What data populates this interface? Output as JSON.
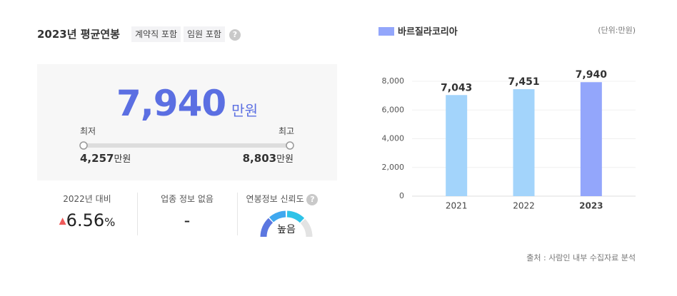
{
  "summary": {
    "title": "2023년 평균연봉",
    "tags": [
      "계약직 포함",
      "임원 포함"
    ],
    "help": "?",
    "average": {
      "value": "7,940",
      "unit": "만원"
    },
    "min": {
      "label": "최저",
      "value": "4,257",
      "unit": "만원"
    },
    "max": {
      "label": "최고",
      "value": "8,803",
      "unit": "만원"
    },
    "stats": [
      {
        "label": "2022년 대비",
        "value": "6.56",
        "unit": "%"
      },
      {
        "label": "업종 정보 없음",
        "value": "-"
      },
      {
        "label": "연봉정보 신뢰도",
        "help": "?",
        "value": "높음"
      }
    ]
  },
  "chart": {
    "type": "bar",
    "legend": "바르질라코리아",
    "legend_color": "#93a6fb",
    "unit_note": "(단위:만원)",
    "categories": [
      "2021",
      "2022",
      "2023"
    ],
    "values": [
      7043,
      7451,
      7940
    ],
    "value_labels": [
      "7,043",
      "7,451",
      "7,940"
    ],
    "colors": [
      "#a3d4fb",
      "#a3d4fb",
      "#93a6fb"
    ],
    "ylim": [
      0,
      8000
    ],
    "yticks": [
      0,
      {
        "value": 2000,
        "label": "2,000"
      },
      {
        "value": 4000,
        "label": "4,000"
      },
      {
        "value": 6000,
        "label": "6,000"
      },
      {
        "value": 8000,
        "label": "8,000"
      }
    ],
    "grid": true
  },
  "source": "출처 : 사람인 내부 수집자료 분석"
}
